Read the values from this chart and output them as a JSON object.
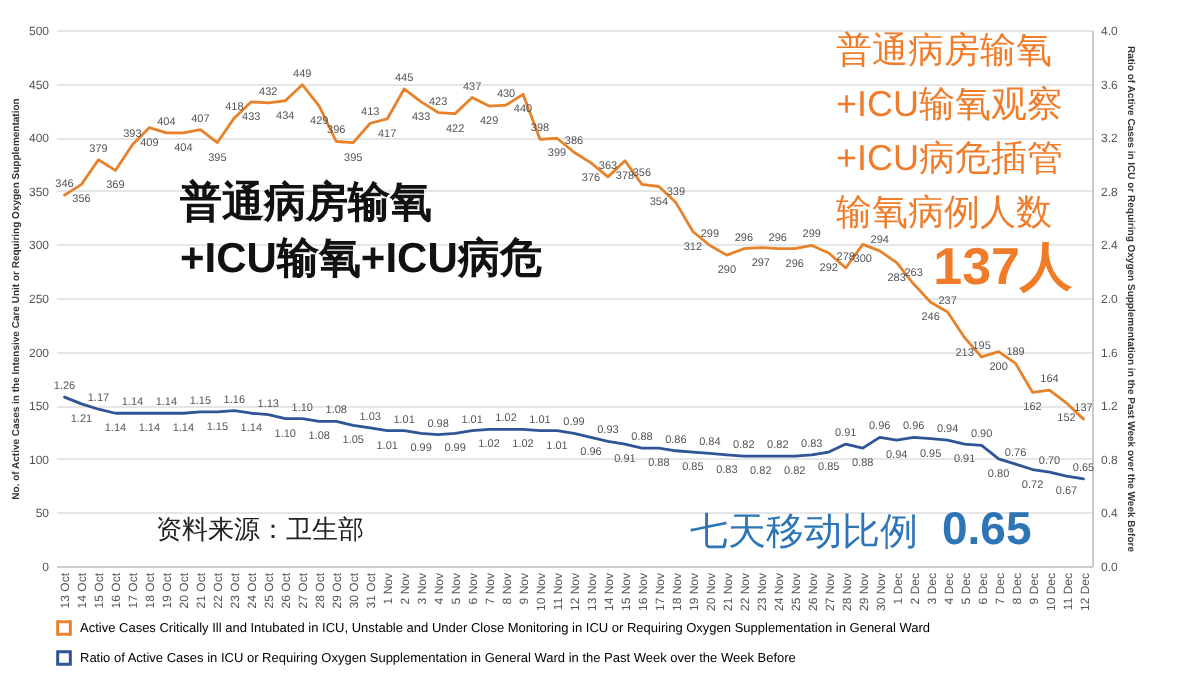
{
  "chart_data": {
    "type": "line",
    "categories": [
      "13 Oct",
      "14 Oct",
      "15 Oct",
      "16 Oct",
      "17 Oct",
      "18 Oct",
      "19 Oct",
      "20 Oct",
      "21 Oct",
      "22 Oct",
      "23 Oct",
      "24 Oct",
      "25 Oct",
      "26 Oct",
      "27 Oct",
      "28 Oct",
      "29 Oct",
      "30 Oct",
      "31 Oct",
      "1 Nov",
      "2 Nov",
      "3 Nov",
      "4 Nov",
      "5 Nov",
      "6 Nov",
      "7 Nov",
      "8 Nov",
      "9 Nov",
      "10 Nov",
      "11 Nov",
      "12 Nov",
      "13 Nov",
      "14 Nov",
      "15 Nov",
      "16 Nov",
      "17 Nov",
      "18 Nov",
      "19 Nov",
      "20 Nov",
      "21 Nov",
      "22 Nov",
      "23 Nov",
      "24 Nov",
      "25 Nov",
      "26 Nov",
      "27 Nov",
      "28 Nov",
      "29 Nov",
      "30 Nov",
      "1 Dec",
      "2 Dec",
      "3 Dec",
      "4 Dec",
      "5 Dec",
      "6 Dec",
      "7 Dec",
      "8 Dec",
      "9 Dec",
      "10 Dec",
      "11 Dec",
      "12 Dec"
    ],
    "series": [
      {
        "name": "Active Cases Critically Ill and Intubated in ICU, Unstable and Under Close Monitoring in ICU or Requiring Oxygen Supplementation in General Ward",
        "color": "#e8822a",
        "values": [
          346,
          356,
          379,
          369,
          393,
          409,
          404,
          404,
          407,
          395,
          418,
          433,
          432,
          434,
          449,
          429,
          396,
          395,
          413,
          417,
          445,
          433,
          423,
          422,
          437,
          429,
          430,
          440,
          398,
          399,
          386,
          376,
          363,
          378,
          356,
          354,
          339,
          312,
          299,
          290,
          296,
          297,
          296,
          296,
          299,
          292,
          278,
          300,
          294,
          283,
          263,
          246,
          237,
          213,
          195,
          200,
          189,
          162,
          164,
          152,
          137
        ],
        "value_labels": [
          "346",
          "356",
          "379",
          "369",
          "393",
          "409",
          "404",
          "404",
          "407",
          "395",
          "418",
          "433",
          "432",
          "434",
          "449",
          "429",
          "396",
          "395",
          "413",
          "417",
          "445",
          "433",
          "423",
          "422",
          "437",
          "429",
          "430",
          "440",
          "398",
          "399",
          "386",
          "376",
          "363",
          "378",
          "356",
          "354",
          "339",
          "312",
          "299",
          "290",
          "296",
          "297",
          "296",
          "296",
          "299",
          "292",
          "278",
          "300",
          "294",
          "283",
          "263",
          "246",
          "237",
          "213",
          "195",
          "200",
          "189",
          "162",
          "164",
          "152",
          "137"
        ]
      },
      {
        "name": "Ratio of Active Cases in ICU or Requiring Oxygen Supplementation in General Ward in the Past Week over the Week Before",
        "color": "#2f5597",
        "axis": "y2",
        "values": [
          1.26,
          1.21,
          1.17,
          1.14,
          1.14,
          1.14,
          1.14,
          1.14,
          1.15,
          1.15,
          1.16,
          1.14,
          1.13,
          1.1,
          1.1,
          1.08,
          1.08,
          1.05,
          1.03,
          1.01,
          1.01,
          0.99,
          0.98,
          0.99,
          1.01,
          1.02,
          1.02,
          1.02,
          1.01,
          1.01,
          0.99,
          0.96,
          0.93,
          0.91,
          0.88,
          0.88,
          0.86,
          0.85,
          0.84,
          0.83,
          0.82,
          0.82,
          0.82,
          0.82,
          0.83,
          0.85,
          0.91,
          0.88,
          0.96,
          0.94,
          0.96,
          0.95,
          0.94,
          0.91,
          0.9,
          0.8,
          0.76,
          0.72,
          0.7,
          0.67,
          0.65
        ],
        "value_labels": [
          "1.26",
          "1.21",
          "1.17",
          "1.14",
          "1.14",
          "1.14",
          "1.14",
          "1.14",
          "1.15",
          "1.15",
          "1.16",
          "1.14",
          "1.13",
          "1.10",
          "1.10",
          "1.08",
          "1.08",
          "1.05",
          "1.03",
          "1.01",
          "1.01",
          "0.99",
          "0.98",
          "0.99",
          "1.01",
          "1.02",
          "1.02",
          "1.02",
          "1.01",
          "1.01",
          "0.99",
          "0.96",
          "0.93",
          "0.91",
          "0.88",
          "0.88",
          "0.86",
          "0.85",
          "0.84",
          "0.83",
          "0.82",
          "0.82",
          "0.82",
          "0.82",
          "0.83",
          "0.85",
          "0.91",
          "0.88",
          "0.96",
          "0.94",
          "0.96",
          "0.95",
          "0.94",
          "0.91",
          "0.90",
          "0.80",
          "0.76",
          "0.72",
          "0.70",
          "0.67",
          "0.65"
        ]
      }
    ],
    "ylabel": "No. of Active Cases in the Intensive Care Unit or Requiring Oxygen Supplementation",
    "y2label": "Ratio of Active Cases in ICU or Requiring Oxygen Supplementation in the Past Week over the Week Before",
    "ylim": [
      0,
      500
    ],
    "yticks": [
      0,
      50,
      100,
      150,
      200,
      250,
      300,
      350,
      400,
      450,
      500
    ],
    "y2lim": [
      0,
      4
    ],
    "y2ticks": [
      {
        "value": 0,
        "label": "0.0"
      },
      {
        "value": 0.4,
        "label": "0.4"
      },
      {
        "value": 0.8,
        "label": "0.8"
      },
      {
        "value": 1.2,
        "label": "1.2"
      },
      {
        "value": 1.6,
        "label": "1.6"
      },
      {
        "value": 2,
        "label": "2.0"
      },
      {
        "value": 2.4,
        "label": "2.4"
      },
      {
        "value": 2.8,
        "label": "2.8"
      },
      {
        "value": 3.2,
        "label": "3.2"
      },
      {
        "value": 3.6,
        "label": "3.6"
      },
      {
        "value": 4,
        "label": "4.0"
      }
    ],
    "grid": "y",
    "legend": "bottom",
    "annotations": [
      "普通病房输氧",
      "+ICU输氧+ICU病危",
      "普通病房输氧",
      "+ICU输氧观察",
      "+ICU病危插管",
      "输氧病例人数",
      "137人",
      "资料来源：卫生部",
      "七天移动比例",
      "0.65"
    ]
  }
}
